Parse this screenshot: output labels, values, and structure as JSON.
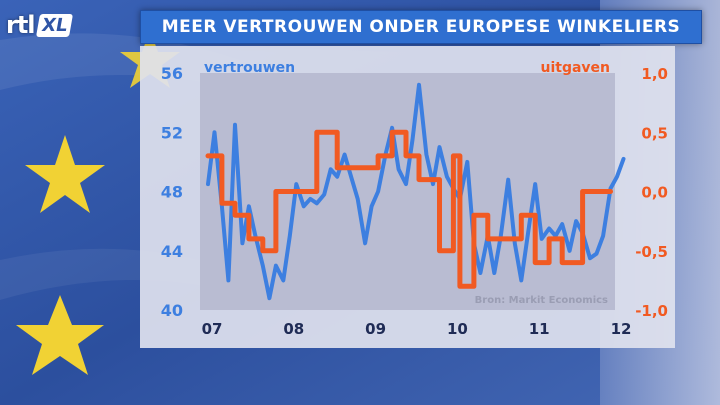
{
  "header": {
    "logo_rtl": "rtl",
    "logo_xl": "XL",
    "title": "MEER VERTROUWEN ONDER EUROPESE WINKELIERS"
  },
  "colors": {
    "vertrouwen": "#3d7fe0",
    "uitgaven": "#f15a22",
    "plot_bg": "#b9bcd2",
    "title_bg": "#2f6fd0"
  },
  "chart_data": {
    "type": "line",
    "title": "MEER VERTROUWEN ONDER EUROPESE WINKELIERS",
    "source": "Bron: Markit Economics",
    "x_labels": [
      "07",
      "08",
      "09",
      "10",
      "11",
      "12"
    ],
    "x_range": [
      2007,
      2012
    ],
    "y_left": {
      "label": "vertrouwen",
      "ticks": [
        "56",
        "52",
        "48",
        "44",
        "40"
      ],
      "range": [
        40,
        56
      ]
    },
    "y_right": {
      "label": "uitgaven",
      "ticks": [
        "1,0",
        "0,5",
        "0,0",
        "-0,5",
        "-1,0"
      ],
      "range": [
        -1.0,
        1.0
      ]
    },
    "series": [
      {
        "name": "vertrouwen",
        "axis": "left",
        "x": [
          2007.0,
          2007.08,
          2007.17,
          2007.25,
          2007.33,
          2007.42,
          2007.5,
          2007.58,
          2007.67,
          2007.75,
          2007.83,
          2007.92,
          2008.0,
          2008.08,
          2008.17,
          2008.25,
          2008.33,
          2008.42,
          2008.5,
          2008.58,
          2008.67,
          2008.75,
          2008.83,
          2008.92,
          2009.0,
          2009.08,
          2009.17,
          2009.25,
          2009.33,
          2009.42,
          2009.5,
          2009.58,
          2009.67,
          2009.75,
          2009.83,
          2009.92,
          2010.0,
          2010.08,
          2010.17,
          2010.25,
          2010.33,
          2010.42,
          2010.5,
          2010.58,
          2010.67,
          2010.75,
          2010.83,
          2010.92,
          2011.0,
          2011.08,
          2011.17,
          2011.25,
          2011.33,
          2011.42,
          2011.5,
          2011.58,
          2011.67,
          2011.75,
          2011.83,
          2011.92,
          2012.0,
          2012.08
        ],
        "values": [
          48.5,
          52.0,
          47.0,
          42.0,
          52.5,
          44.5,
          47.0,
          45.0,
          43.0,
          40.8,
          43.0,
          42.0,
          45.0,
          48.5,
          47.0,
          47.5,
          47.2,
          47.8,
          49.5,
          49.0,
          50.5,
          49.0,
          47.5,
          44.5,
          47.0,
          48.0,
          50.5,
          52.3,
          49.5,
          48.5,
          51.5,
          55.2,
          50.5,
          48.5,
          51.0,
          49.0,
          48.2,
          47.5,
          50.0,
          44.5,
          42.5,
          45.0,
          42.5,
          45.0,
          48.8,
          44.5,
          42.0,
          45.5,
          48.5,
          44.8,
          45.5,
          45.0,
          45.8,
          44.0,
          46.0,
          45.2,
          43.5,
          43.8,
          45.0,
          48.2,
          49.0,
          50.2
        ]
      },
      {
        "name": "uitgaven",
        "axis": "right",
        "x": [
          2007.0,
          2007.17,
          2007.17,
          2007.33,
          2007.33,
          2007.5,
          2007.5,
          2007.67,
          2007.67,
          2007.83,
          2007.83,
          2008.33,
          2008.33,
          2008.58,
          2008.58,
          2008.67,
          2008.67,
          2008.92,
          2008.92,
          2009.08,
          2009.08,
          2009.25,
          2009.25,
          2009.42,
          2009.42,
          2009.58,
          2009.58,
          2009.67,
          2009.67,
          2009.83,
          2009.83,
          2009.92,
          2009.92,
          2010.0,
          2010.0,
          2010.08,
          2010.08,
          2010.25,
          2010.25,
          2010.33,
          2010.33,
          2010.42,
          2010.42,
          2010.5,
          2010.5,
          2010.67,
          2010.67,
          2010.83,
          2010.83,
          2010.92,
          2010.92,
          2011.0,
          2011.0,
          2011.17,
          2011.17,
          2011.33,
          2011.33,
          2011.58,
          2011.58,
          2011.75,
          2011.75,
          2011.92
        ],
        "values": [
          0.3,
          0.3,
          -0.1,
          -0.1,
          -0.2,
          -0.2,
          -0.4,
          -0.4,
          -0.5,
          -0.5,
          0.0,
          0.0,
          0.5,
          0.5,
          0.2,
          0.2,
          0.2,
          0.2,
          0.2,
          0.2,
          0.3,
          0.3,
          0.5,
          0.5,
          0.3,
          0.3,
          0.1,
          0.1,
          0.1,
          0.1,
          -0.5,
          -0.5,
          -0.5,
          -0.5,
          0.3,
          0.3,
          -0.8,
          -0.8,
          -0.2,
          -0.2,
          -0.2,
          -0.2,
          -0.4,
          -0.4,
          -0.4,
          -0.4,
          -0.4,
          -0.4,
          -0.2,
          -0.2,
          -0.2,
          -0.2,
          -0.6,
          -0.6,
          -0.4,
          -0.4,
          -0.6,
          -0.6,
          0.0,
          0.0,
          0.0,
          0.0
        ]
      }
    ],
    "grid": false,
    "legend": "axis-labels"
  }
}
